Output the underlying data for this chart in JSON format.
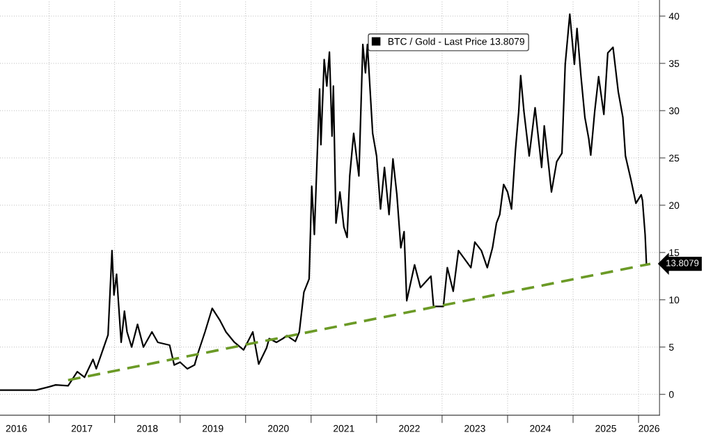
{
  "chart_data": {
    "type": "line",
    "series": [
      {
        "name": "BTC / Gold - Last Price 13.8079",
        "color": "#000000",
        "x": [
          2016.25,
          2016.8,
          2017.0,
          2017.1,
          2017.29,
          2017.43,
          2017.54,
          2017.67,
          2017.72,
          2017.83,
          2017.9,
          2017.96,
          2017.99,
          2018.03,
          2018.1,
          2018.15,
          2018.19,
          2018.26,
          2018.35,
          2018.44,
          2018.57,
          2018.66,
          2018.84,
          2018.91,
          2019.0,
          2019.11,
          2019.22,
          2019.27,
          2019.38,
          2019.49,
          2019.61,
          2019.7,
          2019.83,
          2019.97,
          2020.11,
          2020.2,
          2020.32,
          2020.36,
          2020.47,
          2020.57,
          2020.63,
          2020.76,
          2020.82,
          2020.89,
          2020.97,
          2021.01,
          2021.05,
          2021.13,
          2021.15,
          2021.2,
          2021.24,
          2021.28,
          2021.32,
          2021.34,
          2021.38,
          2021.44,
          2021.5,
          2021.55,
          2021.59,
          2021.65,
          2021.73,
          2021.79,
          2021.83,
          2021.86,
          2021.94,
          2022.0,
          2022.06,
          2022.12,
          2022.19,
          2022.25,
          2022.31,
          2022.37,
          2022.42,
          2022.46,
          2022.58,
          2022.67,
          2022.83,
          2022.87,
          2023.02,
          2023.08,
          2023.17,
          2023.25,
          2023.44,
          2023.5,
          2023.6,
          2023.69,
          2023.77,
          2023.83,
          2023.88,
          2023.94,
          2024.0,
          2024.06,
          2024.12,
          2024.17,
          2024.2,
          2024.25,
          2024.33,
          2024.42,
          2024.52,
          2024.56,
          2024.63,
          2024.67,
          2024.75,
          2024.83,
          2024.88,
          2024.95,
          2025.02,
          2025.06,
          2025.12,
          2025.18,
          2025.24,
          2025.27,
          2025.33,
          2025.39,
          2025.47,
          2025.53,
          2025.61,
          2025.69,
          2025.76,
          2025.8,
          2025.88,
          2025.96,
          2026.04,
          2026.06,
          2026.1,
          2026.12
        ],
        "values": [
          0.44,
          0.45,
          0.8,
          1.0,
          0.9,
          2.4,
          1.8,
          3.7,
          2.7,
          4.9,
          6.3,
          15.2,
          10.5,
          12.7,
          5.5,
          8.8,
          6.6,
          5.0,
          7.4,
          5.0,
          6.6,
          5.5,
          5.2,
          3.1,
          3.4,
          2.7,
          3.1,
          4.3,
          6.6,
          9.1,
          7.8,
          6.6,
          5.5,
          4.7,
          6.6,
          3.2,
          4.9,
          5.9,
          5.5,
          5.9,
          6.2,
          5.6,
          6.6,
          10.8,
          12.2,
          22.0,
          16.9,
          32.3,
          26.4,
          35.4,
          32.6,
          36.2,
          27.3,
          32.6,
          18.1,
          21.4,
          17.7,
          16.6,
          23.1,
          27.6,
          23.1,
          37.0,
          34.0,
          37.0,
          27.6,
          25.2,
          19.6,
          24.0,
          19.0,
          24.9,
          21.1,
          15.5,
          17.2,
          9.9,
          13.7,
          11.3,
          12.5,
          9.3,
          9.3,
          13.4,
          10.9,
          15.2,
          13.4,
          16.1,
          15.2,
          13.4,
          15.5,
          18.1,
          19.0,
          22.2,
          21.4,
          19.6,
          25.8,
          29.9,
          33.7,
          29.9,
          25.2,
          30.3,
          24.0,
          28.4,
          24.0,
          21.4,
          24.6,
          25.5,
          34.9,
          40.2,
          34.9,
          38.7,
          33.7,
          29.3,
          27.0,
          25.3,
          29.9,
          33.6,
          29.6,
          36.1,
          36.7,
          32.0,
          29.3,
          25.2,
          22.8,
          20.2,
          21.1,
          20.5,
          16.9,
          13.8079
        ]
      },
      {
        "color": "#6b9a26",
        "line_style": "dashed",
        "x": [
          2017.29,
          2026.18
        ],
        "values": [
          1.5,
          13.8
        ]
      }
    ],
    "xlim": [
      2016.25,
      2026.32
    ],
    "xticks": [
      {
        "value": 2017,
        "label": null
      },
      {
        "value": 2018,
        "label": null
      },
      {
        "value": 2019,
        "label": null
      },
      {
        "value": 2020,
        "label": null
      },
      {
        "value": 2021,
        "label": null
      },
      {
        "value": 2022,
        "label": null
      },
      {
        "value": 2023,
        "label": null
      },
      {
        "value": 2024,
        "label": null
      },
      {
        "value": 2025,
        "label": null
      },
      {
        "value": 2026,
        "label": null
      },
      {
        "value": 2016.5,
        "label": "2016"
      },
      {
        "value": 2017.5,
        "label": "2017"
      },
      {
        "value": 2018.5,
        "label": "2018"
      },
      {
        "value": 2019.5,
        "label": "2019"
      },
      {
        "value": 2020.5,
        "label": "2020"
      },
      {
        "value": 2021.5,
        "label": "2021"
      },
      {
        "value": 2022.5,
        "label": "2022"
      },
      {
        "value": 2023.5,
        "label": "2023"
      },
      {
        "value": 2024.5,
        "label": "2024"
      },
      {
        "value": 2025.5,
        "label": "2025"
      },
      {
        "value": 2026.16,
        "label": "2026"
      }
    ],
    "ylim": [
      -2.2,
      41.7
    ],
    "yticks": [
      0,
      5,
      10,
      15,
      20,
      25,
      30,
      35,
      40
    ],
    "annotations": [
      {
        "text": "13.8079",
        "x": 2026.12,
        "y": 13.8079
      }
    ],
    "grid": true,
    "legend": "top",
    "line_style": "solid",
    "marker": "none"
  }
}
